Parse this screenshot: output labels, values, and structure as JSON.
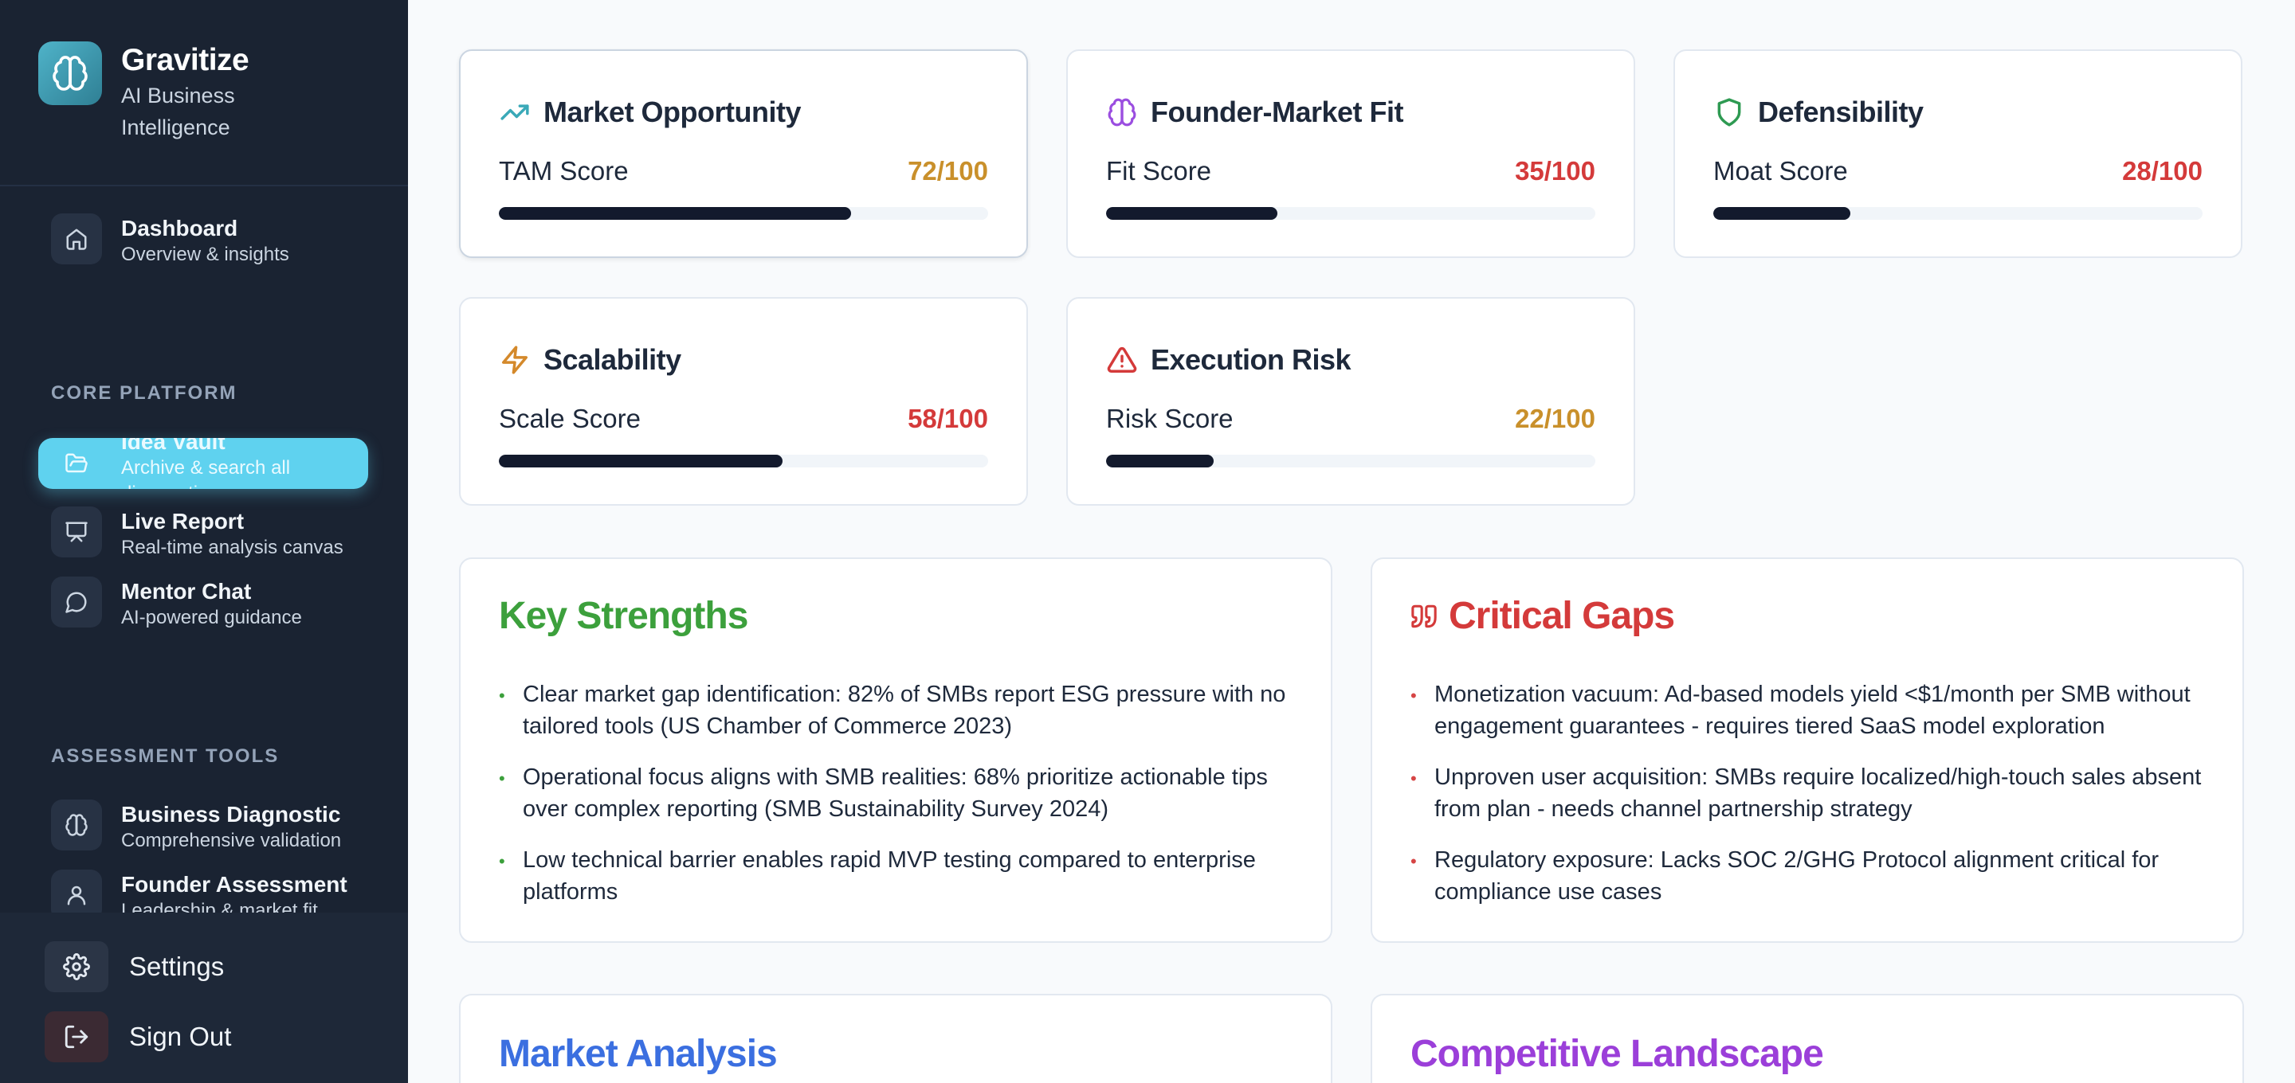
{
  "brand": {
    "name": "Gravitize",
    "subtitle": "AI Business Intelligence"
  },
  "nav": {
    "dashboard": {
      "title": "Dashboard",
      "desc": "Overview & insights"
    },
    "core_label": "CORE PLATFORM",
    "idea_vault": {
      "title": "Idea Vault",
      "desc": "Archive & search all diagnostics"
    },
    "live_report": {
      "title": "Live Report",
      "desc": "Real-time analysis canvas"
    },
    "mentor_chat": {
      "title": "Mentor Chat",
      "desc": "AI-powered guidance"
    },
    "tools_label": "ASSESSMENT TOOLS",
    "business_diagnostic": {
      "title": "Business Diagnostic",
      "desc": "Comprehensive validation"
    },
    "founder_assessment": {
      "title": "Founder Assessment",
      "desc": "Leadership & market fit"
    }
  },
  "footer": {
    "settings": "Settings",
    "sign_out": "Sign Out"
  },
  "scores": [
    {
      "title": "Market Opportunity",
      "label": "TAM Score",
      "value": "72/100",
      "pct": 72,
      "value_color": "#c9902b",
      "icon": "trending-up-icon",
      "icon_color": "#3aa9b8"
    },
    {
      "title": "Founder-Market Fit",
      "label": "Fit Score",
      "value": "35/100",
      "pct": 35,
      "value_color": "#d43a3a",
      "icon": "brain-icon",
      "icon_color": "#9b4ee0"
    },
    {
      "title": "Defensibility",
      "label": "Moat Score",
      "value": "28/100",
      "pct": 28,
      "value_color": "#d43a3a",
      "icon": "shield-icon",
      "icon_color": "#2e9a52"
    },
    {
      "title": "Scalability",
      "label": "Scale Score",
      "value": "58/100",
      "pct": 58,
      "value_color": "#d43a3a",
      "icon": "bolt-icon",
      "icon_color": "#d4892b"
    },
    {
      "title": "Execution Risk",
      "label": "Risk Score",
      "value": "22/100",
      "pct": 22,
      "value_color": "#c9902b",
      "icon": "warning-icon",
      "icon_color": "#d43a3a"
    }
  ],
  "strengths": {
    "title": "Key Strengths",
    "color": "#3ca03c",
    "items": [
      "Clear market gap identification: 82% of SMBs report ESG pressure with no tailored tools (US Chamber of Commerce 2023)",
      "Operational focus aligns with SMB realities: 68% prioritize actionable tips over complex reporting (SMB Sustainability Survey 2024)",
      "Low technical barrier enables rapid MVP testing compared to enterprise platforms"
    ]
  },
  "gaps": {
    "title": "Critical Gaps",
    "color": "#d43a3a",
    "items": [
      "Monetization vacuum: Ad-based models yield <$1/month per SMB without engagement guarantees - requires tiered SaaS model exploration",
      "Unproven user acquisition: SMBs require localized/high-touch sales absent from plan - needs channel partnership strategy",
      "Regulatory exposure: Lacks SOC 2/GHG Protocol alignment critical for compliance use cases"
    ]
  },
  "market_analysis": {
    "title": "Market Analysis",
    "color": "#3b6fe0"
  },
  "competitive": {
    "title": "Competitive Landscape",
    "color": "#9b3fd9"
  }
}
